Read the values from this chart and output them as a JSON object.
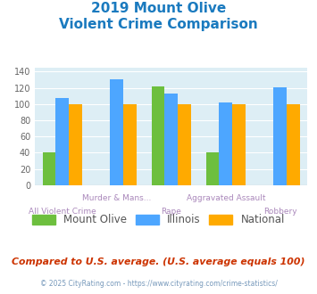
{
  "title_line1": "2019 Mount Olive",
  "title_line2": "Violent Crime Comparison",
  "categories": [
    "All Violent Crime",
    "Murder & Mans...",
    "Rape",
    "Aggravated Assault",
    "Robbery"
  ],
  "cat_labels_top": [
    "",
    "Murder & Mans...",
    "",
    "Aggravated Assault",
    ""
  ],
  "cat_labels_bottom": [
    "All Violent Crime",
    "",
    "Rape",
    "",
    "Robbery"
  ],
  "mount_olive": [
    41,
    0,
    122,
    41,
    0
  ],
  "illinois": [
    108,
    131,
    113,
    102,
    121
  ],
  "national": [
    100,
    100,
    100,
    100,
    100
  ],
  "colors": {
    "mount_olive": "#6dbf3e",
    "illinois": "#4da6ff",
    "national": "#ffaa00"
  },
  "ylim": [
    0,
    145
  ],
  "yticks": [
    0,
    20,
    40,
    60,
    80,
    100,
    120,
    140
  ],
  "bg_color": "#ddeef5",
  "fig_bg": "#ffffff",
  "title_color": "#1a7abf",
  "footer_text": "Compared to U.S. average. (U.S. average equals 100)",
  "footer_color": "#cc3300",
  "credit_text": "© 2025 CityRating.com - https://www.cityrating.com/crime-statistics/",
  "credit_color": "#7799bb",
  "label_color": "#aa88bb",
  "legend_labels": [
    "Mount Olive",
    "Illinois",
    "National"
  ],
  "legend_text_color": "#555555"
}
